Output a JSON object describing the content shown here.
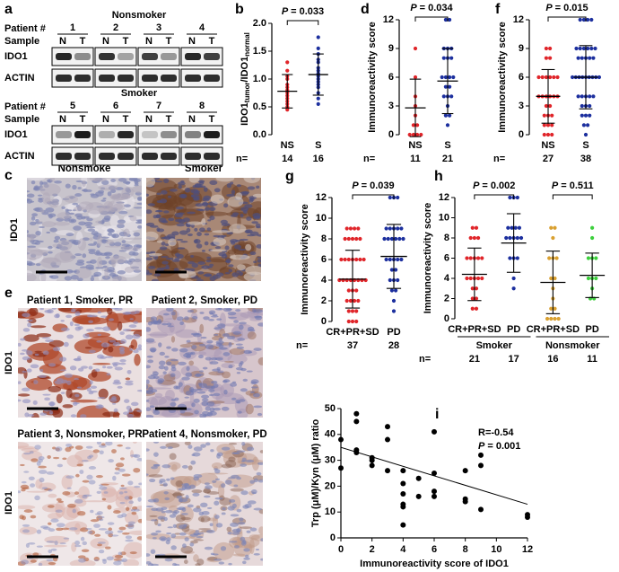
{
  "panel_a": {
    "label": "a",
    "blocks": [
      {
        "title": "Nonsmoker",
        "patient_label": "Patient #",
        "patients": [
          "1",
          "2",
          "3",
          "4"
        ],
        "sample_label": "Sample",
        "samples": [
          "N",
          "T"
        ],
        "rows": [
          "IDO1",
          "ACTIN"
        ]
      },
      {
        "title": "Smoker",
        "patient_label": "Patient #",
        "patients": [
          "5",
          "6",
          "7",
          "8"
        ],
        "sample_label": "Sample",
        "samples": [
          "N",
          "T"
        ],
        "rows": [
          "IDO1",
          "ACTIN"
        ]
      }
    ]
  },
  "panel_c": {
    "label": "c",
    "titles": [
      "Nonsmoke",
      "Smoker"
    ],
    "row_label": "IDO1"
  },
  "panel_e": {
    "label": "e",
    "titles": [
      "Patient 1, Smoker, PR",
      "Patient 2, Smoker, PD",
      "Patient 3, Nonsmoker, PR",
      "Patient 4, Nonsmoker, PD"
    ],
    "row_label": "IDO1"
  },
  "chart_data": [
    {
      "type": "dot",
      "panel": "b",
      "ylabel": [
        "IDO1",
        "tumor",
        "/IDO1",
        "normal"
      ],
      "ylim": [
        0,
        2
      ],
      "yticks": [
        {
          "value": 0,
          "label": "0.0"
        },
        0.5,
        {
          "value": 1,
          "label": "1.0"
        },
        1.5,
        {
          "value": 2,
          "label": "2.0"
        }
      ],
      "n_label": "n=",
      "groups": [
        {
          "name": "NS",
          "color": "#e0252a",
          "n": 14,
          "mean": 0.78,
          "sd": 0.3,
          "values": [
            0.45,
            0.5,
            0.55,
            0.6,
            0.65,
            0.7,
            0.75,
            0.8,
            0.85,
            0.9,
            1.0,
            1.05,
            1.15,
            1.3
          ]
        },
        {
          "name": "S",
          "color": "#1c2f9e",
          "n": 16,
          "mean": 1.08,
          "sd": 0.37,
          "values": [
            0.55,
            0.65,
            0.75,
            0.85,
            0.9,
            0.95,
            1.0,
            1.05,
            1.1,
            1.15,
            1.2,
            1.3,
            1.35,
            1.45,
            1.55,
            1.75
          ]
        }
      ],
      "comparisons": [
        {
          "groups": [
            0,
            1
          ],
          "p": "P",
          "text": "= 0.033"
        }
      ]
    },
    {
      "type": "dot",
      "panel": "d",
      "ylabel": "Immunoreactivity score",
      "ylim": [
        0,
        12
      ],
      "yticks": [
        0,
        3,
        6,
        9,
        12
      ],
      "n_label": "n=",
      "groups": [
        {
          "name": "NS",
          "color": "#e0252a",
          "n": 11,
          "mean": 2.8,
          "sd": 3.0,
          "values": [
            0,
            0,
            0,
            0,
            1,
            1,
            2,
            3,
            4,
            6,
            9
          ]
        },
        {
          "name": "S",
          "color": "#1c2f9e",
          "n": 21,
          "mean": 5.6,
          "sd": 3.4,
          "values": [
            1,
            2,
            2,
            3,
            4,
            4,
            4,
            5,
            5,
            6,
            6,
            6,
            6,
            8,
            8,
            8,
            9,
            9,
            9,
            12,
            12
          ]
        }
      ],
      "comparisons": [
        {
          "groups": [
            0,
            1
          ],
          "p": "P",
          "text": "= 0.034"
        }
      ]
    },
    {
      "type": "dot",
      "panel": "f",
      "ylabel": "Immunoreactivity score",
      "ylim": [
        0,
        12
      ],
      "yticks": [
        0,
        3,
        6,
        9,
        12
      ],
      "n_label": "n=",
      "groups": [
        {
          "name": "NS",
          "color": "#e0252a",
          "n": 27,
          "mean": 4.0,
          "sd": 2.8,
          "values": [
            0,
            0,
            0,
            1,
            1,
            1,
            2,
            2,
            2,
            3,
            3,
            4,
            4,
            4,
            4,
            4,
            4,
            6,
            6,
            6,
            6,
            6,
            6,
            8,
            8,
            9,
            9
          ]
        },
        {
          "name": "S",
          "color": "#1c2f9e",
          "n": 38,
          "mean": 6.0,
          "sd": 3.3,
          "values": [
            0,
            1,
            1,
            2,
            2,
            2,
            3,
            3,
            3,
            4,
            4,
            4,
            4,
            4,
            6,
            6,
            6,
            6,
            6,
            6,
            6,
            6,
            6,
            8,
            8,
            8,
            8,
            8,
            9,
            9,
            9,
            9,
            9,
            9,
            12,
            12,
            12,
            12
          ]
        }
      ],
      "comparisons": [
        {
          "groups": [
            0,
            1
          ],
          "p": "P",
          "text": "= 0.015"
        }
      ]
    },
    {
      "type": "dot",
      "panel": "g",
      "ylabel": "Immunoreactivity score",
      "ylim": [
        0,
        12
      ],
      "yticks": [
        0,
        2,
        4,
        6,
        8,
        10,
        12
      ],
      "n_label": "n=",
      "groups": [
        {
          "name": "CR+PR+SD",
          "color": "#e0252a",
          "n": 37,
          "mean": 4.1,
          "sd": 2.8,
          "values": [
            0,
            0,
            0,
            1,
            1,
            1,
            2,
            2,
            2,
            2,
            3,
            3,
            3,
            4,
            4,
            4,
            4,
            4,
            4,
            4,
            4,
            6,
            6,
            6,
            6,
            6,
            6,
            6,
            8,
            8,
            8,
            8,
            8,
            9,
            9,
            9,
            9
          ]
        },
        {
          "name": "PD",
          "color": "#1c2f9e",
          "n": 28,
          "mean": 6.3,
          "sd": 3.1,
          "values": [
            1,
            2,
            3,
            3,
            4,
            4,
            4,
            5,
            5,
            6,
            6,
            6,
            6,
            6,
            8,
            8,
            8,
            8,
            8,
            8,
            9,
            9,
            9,
            9,
            9,
            12,
            12,
            12
          ]
        }
      ],
      "comparisons": [
        {
          "groups": [
            0,
            1
          ],
          "p": "P",
          "text": "= 0.039"
        }
      ]
    },
    {
      "type": "dot",
      "panel": "h",
      "ylabel": "Immunoreactivity score",
      "ylim": [
        0,
        12
      ],
      "yticks": [
        0,
        2,
        4,
        6,
        8,
        10,
        12
      ],
      "n_label": "n=",
      "groups": [
        {
          "name": "CR+PR+SD",
          "color": "#e0252a",
          "n": 21,
          "mean": 4.4,
          "sd": 2.6,
          "values": [
            1,
            1,
            2,
            2,
            3,
            3,
            4,
            4,
            4,
            4,
            4,
            6,
            6,
            6,
            6,
            6,
            8,
            8,
            8,
            9,
            9
          ]
        },
        {
          "name": "PD",
          "color": "#1c2f9e",
          "n": 17,
          "mean": 7.5,
          "sd": 2.9,
          "values": [
            3,
            4,
            6,
            6,
            6,
            8,
            8,
            8,
            8,
            8,
            9,
            9,
            9,
            9,
            12,
            12,
            12
          ]
        },
        {
          "name": "CR+PR+SD",
          "color": "#d9a030",
          "n": 16,
          "mean": 3.6,
          "sd": 3.1,
          "values": [
            0,
            0,
            0,
            0,
            1,
            1,
            2,
            3,
            4,
            4,
            6,
            6,
            6,
            8,
            9,
            9
          ]
        },
        {
          "name": "PD",
          "color": "#3ccf3c",
          "n": 11,
          "mean": 4.3,
          "sd": 2.2,
          "values": [
            2,
            2,
            3,
            4,
            4,
            4,
            6,
            6,
            6,
            8,
            9
          ]
        }
      ],
      "group_labels": [
        {
          "label": "Smoker",
          "groups": [
            0,
            1
          ]
        },
        {
          "label": "Nonsmoker",
          "groups": [
            2,
            3
          ]
        }
      ],
      "comparisons": [
        {
          "groups": [
            0,
            1
          ],
          "p": "P",
          "text": "= 0.002"
        },
        {
          "groups": [
            2,
            3
          ],
          "p": "P",
          "text": "= 0.511"
        }
      ]
    },
    {
      "type": "scatter",
      "panel": "i",
      "xlabel": "Immunoreactivity score of IDO1",
      "ylabel": "Trp (μM)/Kyn (μM) ratio",
      "xlim": [
        0,
        12
      ],
      "xticks": [
        0,
        2,
        4,
        6,
        8,
        10,
        12
      ],
      "ylim": [
        0,
        50
      ],
      "yticks": [
        0,
        10,
        20,
        30,
        40,
        50
      ],
      "color": "#000000",
      "x": [
        0,
        0,
        1,
        1,
        1,
        1,
        2,
        2,
        2,
        3,
        3,
        3,
        4,
        4,
        4,
        4,
        4,
        4,
        5,
        5,
        6,
        6,
        6,
        6,
        8,
        8,
        8,
        9,
        9,
        9,
        12,
        12
      ],
      "y": [
        27,
        38,
        48,
        45,
        34,
        33,
        30,
        28,
        31,
        43,
        26,
        38,
        26,
        21,
        17,
        13,
        12,
        5,
        16,
        23,
        41,
        25,
        18,
        16,
        26,
        15,
        14,
        32,
        28,
        11,
        9,
        8
      ],
      "fit": {
        "x": [
          0,
          12
        ],
        "y": [
          35,
          13
        ]
      },
      "annotation": "R=-0.54",
      "p": "P",
      "p_text": "= 0.001"
    }
  ]
}
